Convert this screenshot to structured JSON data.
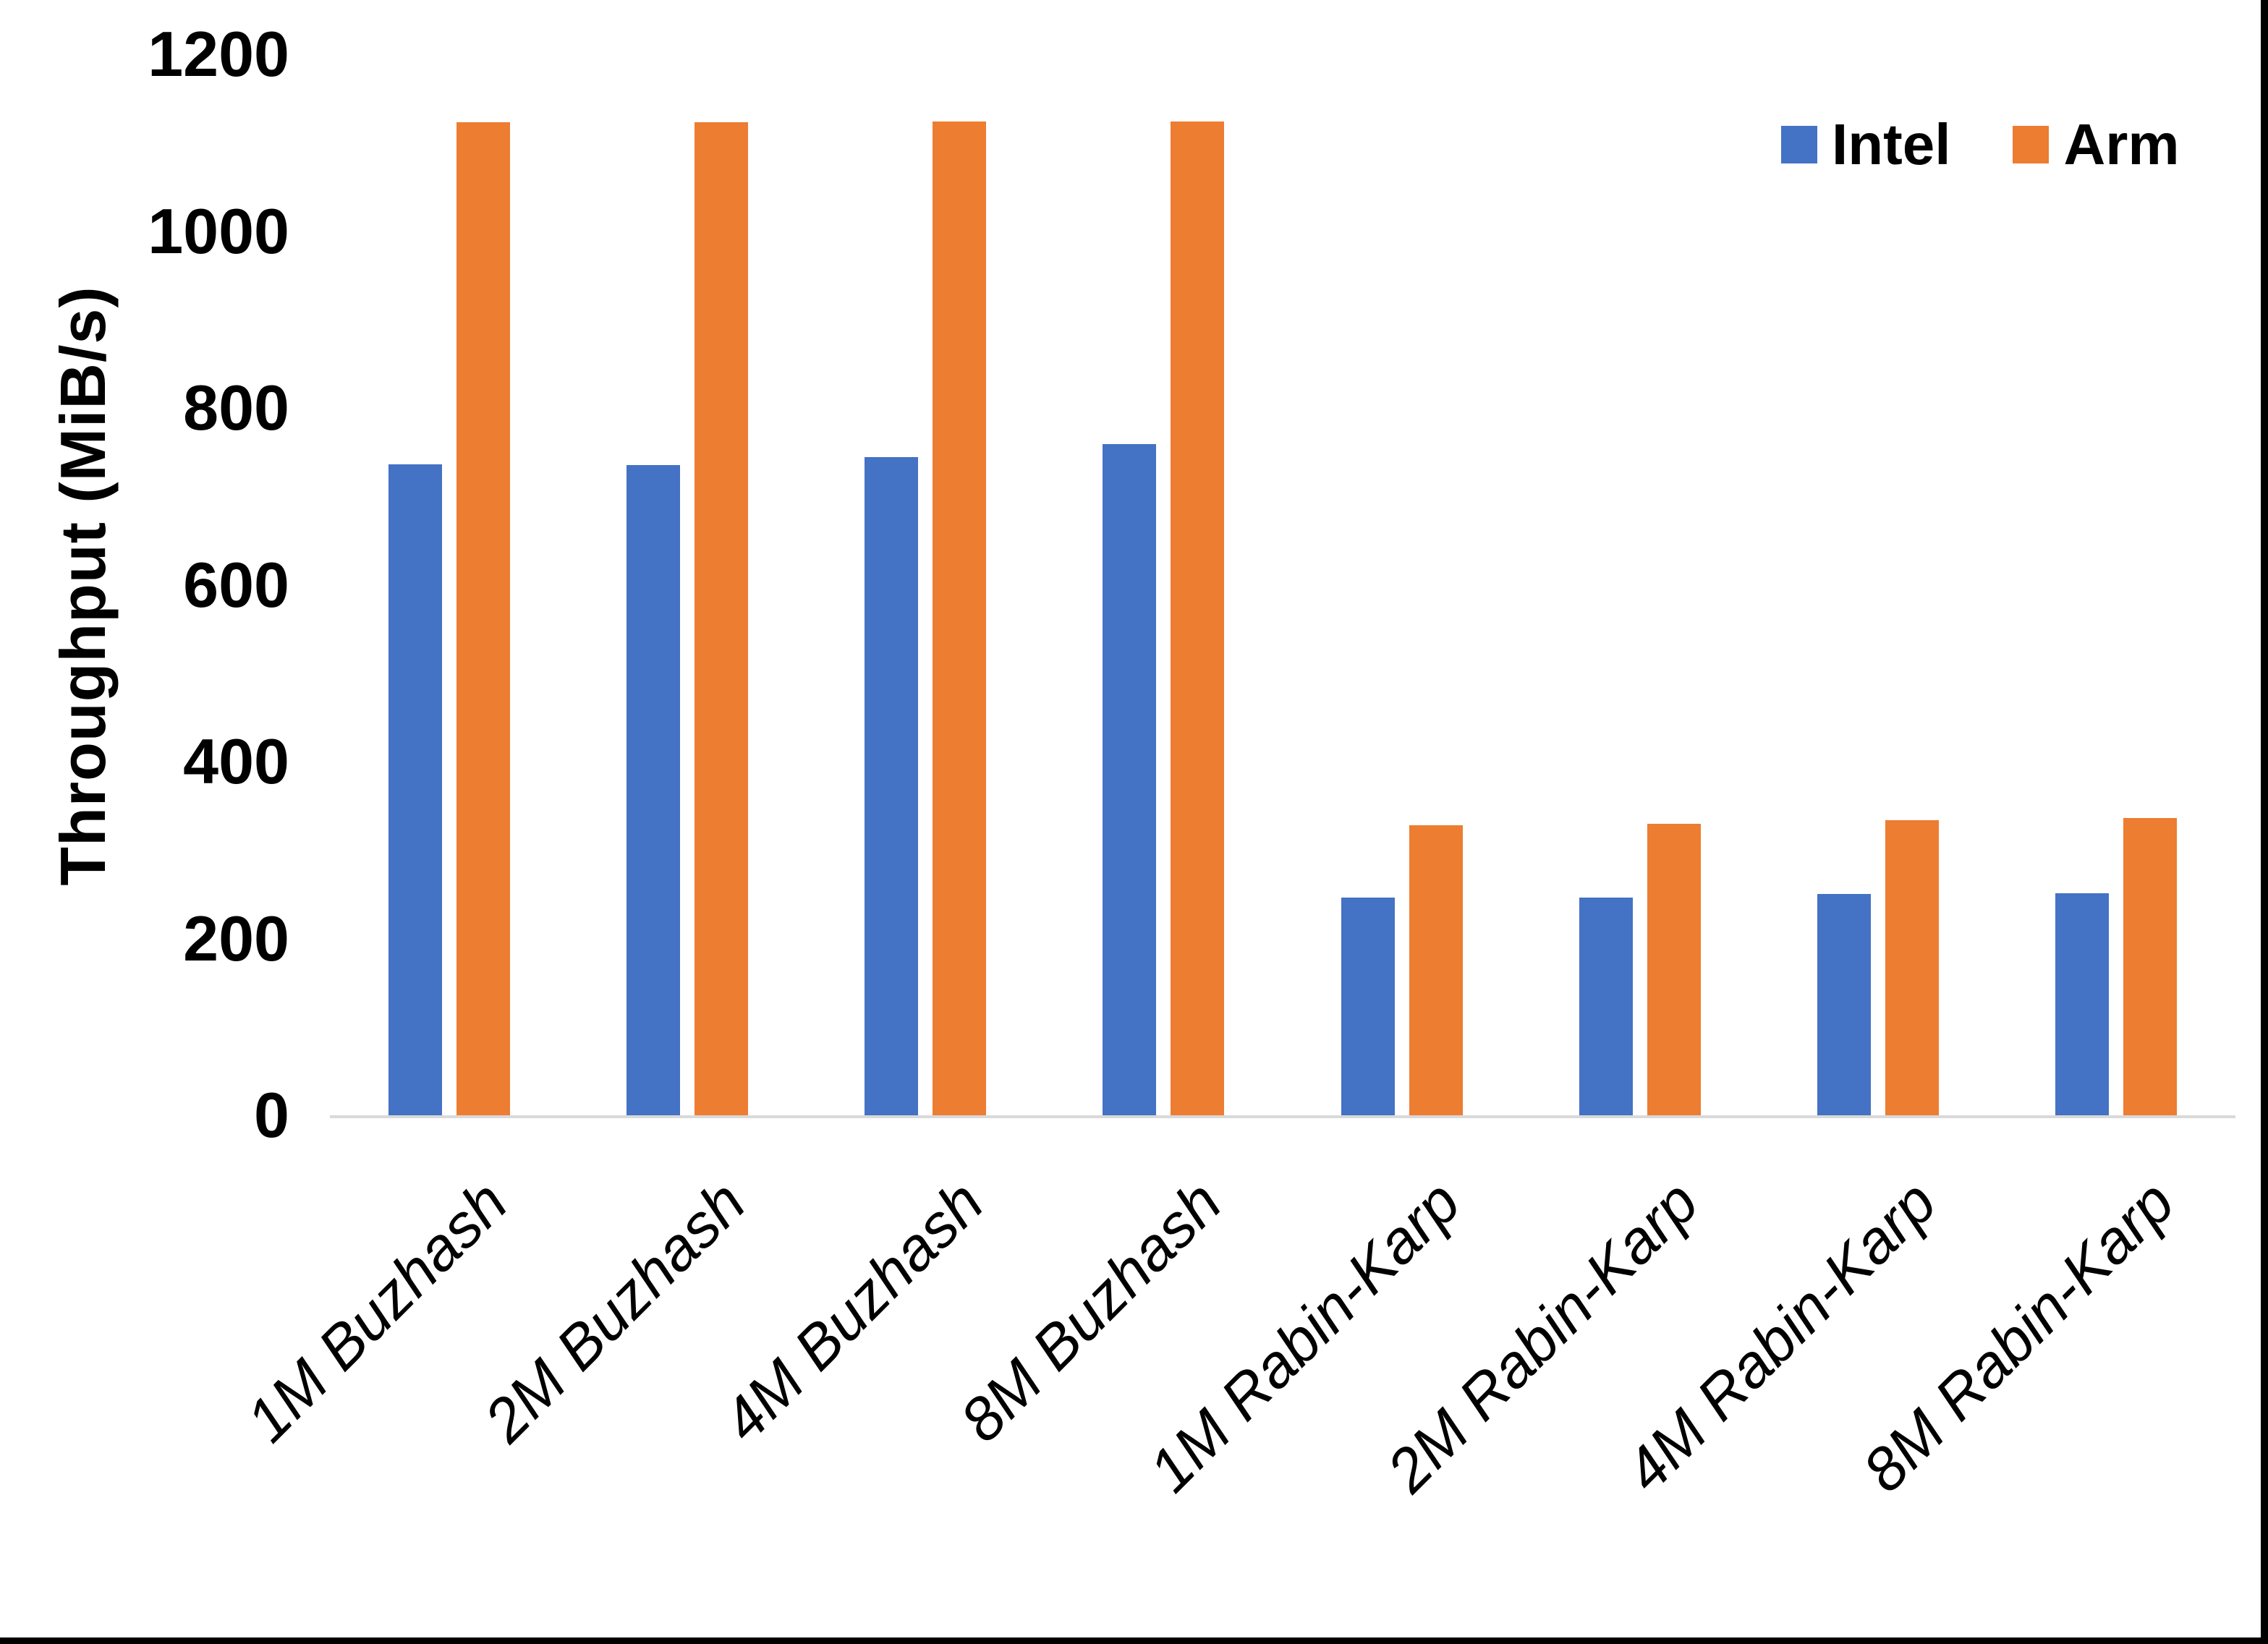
{
  "figure": {
    "y_axis_title": "Throughput (MiB/s)",
    "legend": {
      "intel_label": "Intel",
      "arm_label": "Arm"
    },
    "colors": {
      "intel": "#4472C4",
      "arm": "#ED7D31",
      "axis_line": "#D9D9D9",
      "text": "#000000",
      "background": "#FFFFFF"
    }
  },
  "chart_data": {
    "type": "bar",
    "title": "",
    "xlabel": "",
    "ylabel": "Throughput (MiB/s)",
    "categories": [
      "1M Buzhash",
      "2M Buzhash",
      "4M Buzhash",
      "8M Buzhash",
      "1M Rabin-Karp",
      "2M Rabin-Karp",
      "4M Rabin-Karp",
      "8M Rabin-Karp"
    ],
    "series": [
      {
        "name": "Intel",
        "color": "#4472C4",
        "values": [
          736,
          735,
          744,
          759,
          246,
          246,
          250,
          251
        ]
      },
      {
        "name": "Arm",
        "color": "#ED7D31",
        "values": [
          1123,
          1123,
          1124,
          1124,
          328,
          330,
          334,
          336
        ]
      }
    ],
    "ylim": [
      0,
      1200
    ],
    "yticks": [
      0,
      200,
      400,
      600,
      800,
      1000,
      1200
    ],
    "grid": false,
    "legend_position": "top-right",
    "x_tick_rotation_deg": 45,
    "bar_orientation": "vertical"
  }
}
